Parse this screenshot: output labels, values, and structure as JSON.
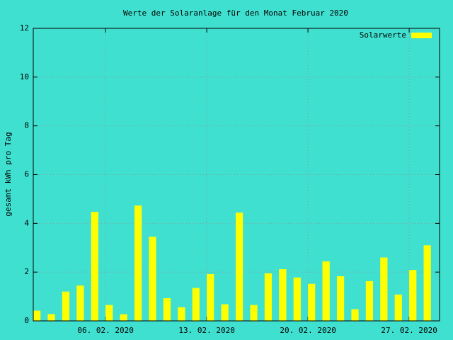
{
  "chart_data": {
    "type": "bar",
    "title": "Werte der Solaranlage für den Monat Februar 2020",
    "y_label": "gesamt kWh pro Tag",
    "x": [
      1,
      2,
      3,
      4,
      5,
      6,
      7,
      8,
      9,
      10,
      11,
      12,
      13,
      14,
      15,
      16,
      17,
      18,
      19,
      20,
      21,
      22,
      23,
      24,
      25,
      26,
      27,
      28
    ],
    "series": [
      {
        "name": "Solarwerte",
        "color": "#ffff00",
        "values": [
          0.42,
          0.28,
          1.2,
          1.45,
          4.47,
          0.65,
          0.27,
          4.73,
          3.45,
          0.93,
          0.56,
          1.35,
          1.92,
          0.68,
          4.44,
          0.65,
          1.95,
          2.12,
          1.78,
          1.52,
          2.44,
          1.83,
          0.48,
          1.63,
          2.6,
          1.08,
          2.09,
          3.1
        ]
      }
    ],
    "xlim": [
      1,
      29.1
    ],
    "xticks": [
      {
        "value": 6,
        "label": "06. 02. 2020"
      },
      {
        "value": 13,
        "label": "13. 02. 2020"
      },
      {
        "value": 20,
        "label": "20. 02. 2020"
      },
      {
        "value": 27,
        "label": "27. 02. 2020"
      }
    ],
    "ylim": [
      0,
      12
    ],
    "yticks": [
      0,
      2,
      4,
      6,
      8,
      10,
      12
    ],
    "grid": true,
    "legend": "top-right"
  }
}
